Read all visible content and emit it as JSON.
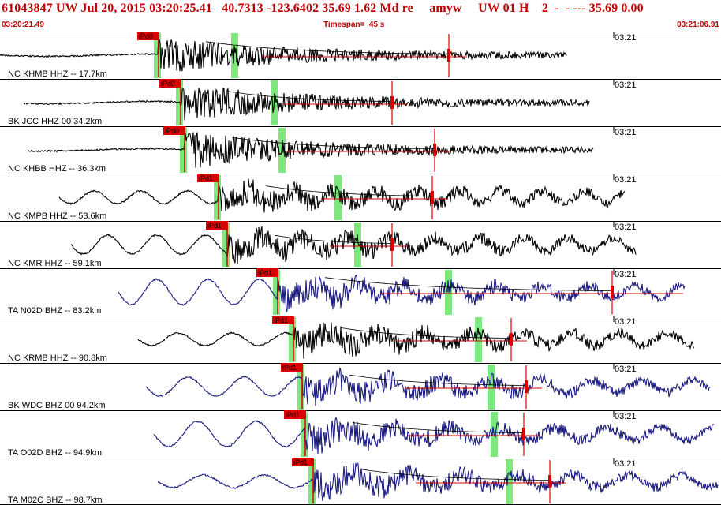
{
  "header": {
    "title": "61043847 UW Jul 20, 2015 03:20:25.41   40.7313 -123.6402 35.69 1.62 Md re     amyw     UW 01 H    2  -  - --- 35.69 0.00",
    "start_time": "03:20:21.49",
    "timespan": "Timespan=  45 s",
    "end_time": "03:21:06.91"
  },
  "colors": {
    "pick_red": "#dd0000",
    "window_green": "#7ee87e",
    "trace_black": "#000000",
    "trace_navy": "#1a1a80",
    "header_red": "#c00000"
  },
  "panels": [
    {
      "label": "NC KHMB HHZ -- 17.7km",
      "pick": "iPd0",
      "time_label": "03:21",
      "trace_color": "black"
    },
    {
      "label": "BK JCC HHZ 00 34.2km",
      "pick": "iPd0",
      "time_label": "03:21",
      "trace_color": "black"
    },
    {
      "label": "NC KHBB HHZ -- 36.3km",
      "pick": "iPd0",
      "time_label": "03:21",
      "trace_color": "black"
    },
    {
      "label": "NC KMPB HHZ -- 53.6km",
      "pick": "iPd1",
      "time_label": "03:21",
      "trace_color": "black"
    },
    {
      "label": "NC KMR HHZ -- 59.1km",
      "pick": "iPd1",
      "time_label": "03:21",
      "trace_color": "black"
    },
    {
      "label": "TA N02D BHZ -- 83.2km",
      "pick": "iPd1",
      "time_label": "03:21",
      "trace_color": "navy"
    },
    {
      "label": "NC KRMB HHZ -- 90.8km",
      "pick": "iPd1",
      "time_label": "03:21",
      "trace_color": "black"
    },
    {
      "label": "BK WDC BHZ 00 94.2km",
      "pick": "iPd1",
      "time_label": "03:21",
      "trace_color": "navy"
    },
    {
      "label": "TA O02D BHZ -- 94.9km",
      "pick": "iPd1",
      "time_label": "03:21",
      "trace_color": "navy"
    },
    {
      "label": "TA M02C BHZ -- 98.7km",
      "pick": "iPd1",
      "time_label": "03:21",
      "trace_color": "navy"
    }
  ]
}
